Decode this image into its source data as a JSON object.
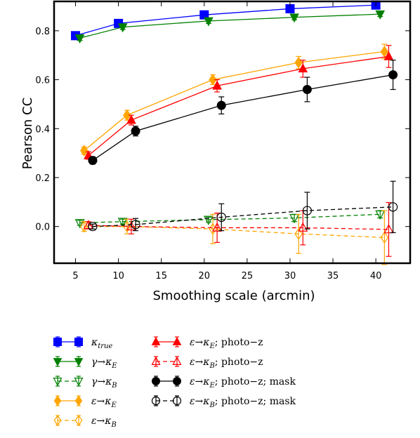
{
  "chart_data": {
    "type": "line",
    "xlabel": "Smoothing scale (arcmin)",
    "ylabel": "Pearson CC",
    "xlim": [
      2.5,
      44
    ],
    "ylim": [
      -0.15,
      0.92
    ],
    "xticks": [
      5,
      10,
      15,
      20,
      25,
      30,
      35,
      40
    ],
    "xtick_labels": [
      "5",
      "10",
      "15",
      "20",
      "25",
      "30",
      "35",
      "40"
    ],
    "yticks": [
      0.0,
      0.2,
      0.4,
      0.6,
      0.8
    ],
    "ytick_labels": [
      "0.0",
      "0.2",
      "0.4",
      "0.6",
      "0.8"
    ],
    "grid": false,
    "legend_position": "below",
    "series": [
      {
        "name": "κ_true",
        "color": "#0000ff",
        "marker": "square",
        "filled": true,
        "linestyle": "solid",
        "x": [
          5,
          10,
          20,
          30,
          40
        ],
        "y": [
          0.78,
          0.83,
          0.865,
          0.89,
          0.905
        ],
        "err": [
          0.01,
          0.01,
          0.01,
          0.01,
          0.01
        ]
      },
      {
        "name": "γ→κ_E",
        "color": "#008000",
        "marker": "triangle-down",
        "filled": true,
        "linestyle": "solid",
        "x": [
          5.5,
          10.5,
          20.5,
          30.5,
          40.5
        ],
        "y": [
          0.77,
          0.815,
          0.84,
          0.855,
          0.868
        ],
        "err": [
          0.01,
          0.01,
          0.01,
          0.01,
          0.01
        ]
      },
      {
        "name": "γ→κ_B",
        "color": "#008000",
        "marker": "triangle-down",
        "filled": false,
        "linestyle": "dashed",
        "x": [
          5.5,
          10.5,
          20.5,
          30.5,
          40.5
        ],
        "y": [
          0.015,
          0.02,
          0.028,
          0.035,
          0.05
        ],
        "err": [
          0.01,
          0.01,
          0.01,
          0.015,
          0.015
        ]
      },
      {
        "name": "ε→κ_E",
        "color": "#ffa500",
        "marker": "diamond",
        "filled": true,
        "linestyle": "solid",
        "x": [
          6,
          11,
          21,
          31,
          41
        ],
        "y": [
          0.31,
          0.455,
          0.6,
          0.67,
          0.715
        ],
        "err": [
          0.015,
          0.02,
          0.02,
          0.025,
          0.03
        ]
      },
      {
        "name": "ε→κ_B",
        "color": "#ffa500",
        "marker": "diamond",
        "filled": false,
        "linestyle": "dashed",
        "x": [
          6,
          11,
          21,
          31,
          41
        ],
        "y": [
          0.0,
          0.0,
          -0.01,
          -0.03,
          -0.045
        ],
        "err": [
          0.02,
          0.03,
          0.06,
          0.08,
          0.11
        ]
      },
      {
        "name": "ε→κ_E; photo−z",
        "color": "#ff0000",
        "marker": "triangle-up",
        "filled": true,
        "linestyle": "solid",
        "x": [
          6.5,
          11.5,
          21.5,
          31.5,
          41.5
        ],
        "y": [
          0.29,
          0.435,
          0.575,
          0.645,
          0.695
        ],
        "err": [
          0.015,
          0.02,
          0.025,
          0.035,
          0.045
        ]
      },
      {
        "name": "ε→κ_B; photo−z",
        "color": "#ff0000",
        "marker": "triangle-up",
        "filled": false,
        "linestyle": "dashed",
        "x": [
          6.5,
          11.5,
          21.5,
          31.5,
          41.5
        ],
        "y": [
          0.005,
          0.0,
          -0.005,
          -0.005,
          -0.012
        ],
        "err": [
          0.015,
          0.03,
          0.06,
          0.07,
          0.11
        ]
      },
      {
        "name": "ε→κ_E; photo−z; mask",
        "color": "#000000",
        "marker": "circle",
        "filled": true,
        "linestyle": "solid",
        "x": [
          7,
          12,
          22,
          32,
          42
        ],
        "y": [
          0.27,
          0.39,
          0.495,
          0.56,
          0.62
        ],
        "err": [
          0.015,
          0.02,
          0.035,
          0.05,
          0.06
        ]
      },
      {
        "name": "ε→κ_B; photo−z; mask",
        "color": "#000000",
        "marker": "circle",
        "filled": false,
        "linestyle": "dashed",
        "x": [
          7,
          12,
          22,
          32,
          42
        ],
        "y": [
          0.0,
          0.008,
          0.038,
          0.065,
          0.08
        ],
        "err": [
          0.01,
          0.025,
          0.055,
          0.075,
          0.105
        ]
      }
    ]
  },
  "legend": {
    "column1": [
      {
        "series_index": 0,
        "base": "κ",
        "sub": "true",
        "mid": ""
      },
      {
        "series_index": 1,
        "base": "γ→κ",
        "sub": "E",
        "mid": ""
      },
      {
        "series_index": 2,
        "base": "γ→κ",
        "sub": "B",
        "mid": ""
      },
      {
        "series_index": 3,
        "base": "ε→κ",
        "sub": "E",
        "mid": ""
      },
      {
        "series_index": 4,
        "base": "ε→κ",
        "sub": "B",
        "mid": ""
      }
    ],
    "column2": [
      {
        "series_index": 5,
        "base": "ε→κ",
        "sub": "E",
        "suffix": "; photo−z"
      },
      {
        "series_index": 6,
        "base": "ε→κ",
        "sub": "B",
        "suffix": "; photo−z"
      },
      {
        "series_index": 7,
        "base": "ε→κ",
        "sub": "E",
        "suffix": "; photo−z; mask"
      },
      {
        "series_index": 8,
        "base": "ε→κ",
        "sub": "B",
        "suffix": "; photo−z; mask"
      }
    ]
  }
}
